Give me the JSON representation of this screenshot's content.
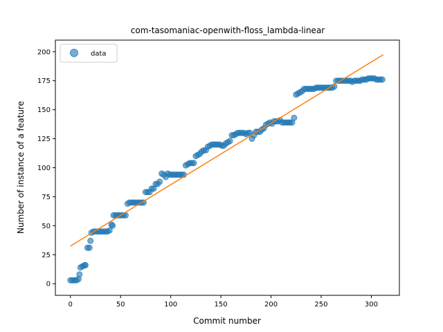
{
  "chart_data": {
    "type": "scatter",
    "title": "com-tasomaniac-openwith-floss_lambda-linear",
    "xlabel": "Commit number",
    "ylabel": "Number of instance of a feature",
    "xlim": [
      -15,
      328
    ],
    "ylim": [
      -10,
      210
    ],
    "xticks": [
      0,
      50,
      100,
      150,
      200,
      250,
      300
    ],
    "yticks": [
      0,
      25,
      50,
      75,
      100,
      125,
      150,
      175,
      200
    ],
    "legend": {
      "position": "top-left",
      "entries": [
        "data"
      ]
    },
    "grid": false,
    "colors": {
      "data": "#1f77b4",
      "fit": "#ff7f0e"
    },
    "series": [
      {
        "name": "data",
        "kind": "scatter",
        "points": [
          [
            0,
            3
          ],
          [
            2,
            3
          ],
          [
            4,
            3
          ],
          [
            6,
            3
          ],
          [
            8,
            4
          ],
          [
            9,
            8
          ],
          [
            10,
            14
          ],
          [
            12,
            15
          ],
          [
            14,
            16
          ],
          [
            15,
            16
          ],
          [
            17,
            31
          ],
          [
            19,
            31
          ],
          [
            20,
            37
          ],
          [
            21,
            44
          ],
          [
            23,
            45
          ],
          [
            25,
            45
          ],
          [
            27,
            45
          ],
          [
            29,
            45
          ],
          [
            31,
            45
          ],
          [
            33,
            45
          ],
          [
            35,
            45
          ],
          [
            37,
            45
          ],
          [
            39,
            46
          ],
          [
            41,
            51
          ],
          [
            42,
            50
          ],
          [
            43,
            59
          ],
          [
            45,
            59
          ],
          [
            47,
            59
          ],
          [
            49,
            59
          ],
          [
            51,
            59
          ],
          [
            53,
            59
          ],
          [
            55,
            59
          ],
          [
            57,
            69
          ],
          [
            59,
            70
          ],
          [
            61,
            70
          ],
          [
            63,
            70
          ],
          [
            65,
            70
          ],
          [
            67,
            70
          ],
          [
            69,
            70
          ],
          [
            71,
            70
          ],
          [
            73,
            70
          ],
          [
            75,
            79
          ],
          [
            77,
            79
          ],
          [
            79,
            79
          ],
          [
            81,
            82
          ],
          [
            83,
            82
          ],
          [
            85,
            86
          ],
          [
            87,
            86
          ],
          [
            89,
            88
          ],
          [
            91,
            95
          ],
          [
            93,
            94
          ],
          [
            95,
            92
          ],
          [
            97,
            95
          ],
          [
            99,
            94
          ],
          [
            101,
            94
          ],
          [
            103,
            94
          ],
          [
            105,
            94
          ],
          [
            107,
            94
          ],
          [
            109,
            94
          ],
          [
            111,
            94
          ],
          [
            113,
            94
          ],
          [
            115,
            102
          ],
          [
            117,
            103
          ],
          [
            119,
            104
          ],
          [
            121,
            104
          ],
          [
            123,
            104
          ],
          [
            125,
            110
          ],
          [
            127,
            111
          ],
          [
            129,
            112
          ],
          [
            131,
            114
          ],
          [
            133,
            115
          ],
          [
            135,
            115
          ],
          [
            137,
            118
          ],
          [
            139,
            119
          ],
          [
            141,
            120
          ],
          [
            143,
            120
          ],
          [
            145,
            120
          ],
          [
            147,
            120
          ],
          [
            149,
            120
          ],
          [
            151,
            119
          ],
          [
            153,
            119
          ],
          [
            155,
            121
          ],
          [
            157,
            122
          ],
          [
            159,
            123
          ],
          [
            161,
            128
          ],
          [
            163,
            128
          ],
          [
            165,
            129
          ],
          [
            167,
            130
          ],
          [
            169,
            130
          ],
          [
            171,
            130
          ],
          [
            173,
            130
          ],
          [
            175,
            129
          ],
          [
            177,
            130
          ],
          [
            179,
            130
          ],
          [
            181,
            125
          ],
          [
            183,
            128
          ],
          [
            185,
            131
          ],
          [
            187,
            131
          ],
          [
            189,
            131
          ],
          [
            191,
            133
          ],
          [
            193,
            134
          ],
          [
            195,
            137
          ],
          [
            197,
            138
          ],
          [
            199,
            139
          ],
          [
            201,
            138
          ],
          [
            203,
            140
          ],
          [
            205,
            140
          ],
          [
            207,
            140
          ],
          [
            209,
            141
          ],
          [
            211,
            139
          ],
          [
            213,
            139
          ],
          [
            215,
            139
          ],
          [
            217,
            139
          ],
          [
            219,
            139
          ],
          [
            221,
            139
          ],
          [
            223,
            143
          ],
          [
            225,
            163
          ],
          [
            227,
            164
          ],
          [
            229,
            165
          ],
          [
            231,
            166
          ],
          [
            233,
            168
          ],
          [
            235,
            168
          ],
          [
            237,
            168
          ],
          [
            239,
            168
          ],
          [
            241,
            168
          ],
          [
            243,
            168
          ],
          [
            245,
            169
          ],
          [
            247,
            169
          ],
          [
            249,
            169
          ],
          [
            251,
            169
          ],
          [
            253,
            169
          ],
          [
            255,
            169
          ],
          [
            257,
            169
          ],
          [
            259,
            169
          ],
          [
            261,
            169
          ],
          [
            263,
            170
          ],
          [
            265,
            175
          ],
          [
            267,
            175
          ],
          [
            269,
            175
          ],
          [
            271,
            175
          ],
          [
            273,
            175
          ],
          [
            275,
            175
          ],
          [
            277,
            175
          ],
          [
            279,
            175
          ],
          [
            281,
            174
          ],
          [
            283,
            175
          ],
          [
            285,
            175
          ],
          [
            287,
            175
          ],
          [
            289,
            175
          ],
          [
            291,
            176
          ],
          [
            293,
            176
          ],
          [
            295,
            176
          ],
          [
            297,
            177
          ],
          [
            299,
            177
          ],
          [
            301,
            177
          ],
          [
            303,
            177
          ],
          [
            305,
            176
          ],
          [
            307,
            176
          ],
          [
            309,
            176
          ],
          [
            311,
            176
          ]
        ]
      },
      {
        "name": "",
        "kind": "line",
        "points": [
          [
            0,
            32.5
          ],
          [
            312,
            197.5
          ]
        ]
      }
    ]
  }
}
